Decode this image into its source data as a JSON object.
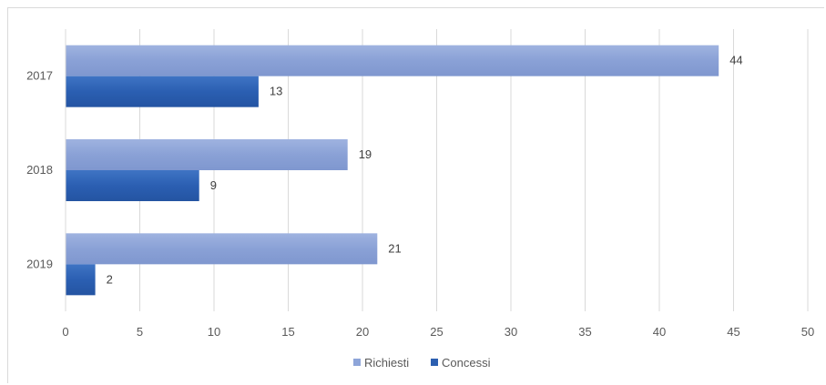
{
  "chart_data": {
    "type": "bar",
    "orientation": "horizontal",
    "categories": [
      "2017",
      "2018",
      "2019"
    ],
    "series": [
      {
        "name": "Richiesti",
        "values": [
          44,
          19,
          21
        ],
        "color": "#8ea5d9"
      },
      {
        "name": "Concessi",
        "values": [
          13,
          9,
          2
        ],
        "color": "#2c5fb0"
      }
    ],
    "xlim": [
      0,
      50
    ],
    "xticks": [
      0,
      5,
      10,
      15,
      20,
      25,
      30,
      35,
      40,
      45,
      50
    ],
    "grid": "vertical",
    "legend_position": "bottom",
    "data_labels": true,
    "title": "",
    "xlabel": "",
    "ylabel": ""
  }
}
